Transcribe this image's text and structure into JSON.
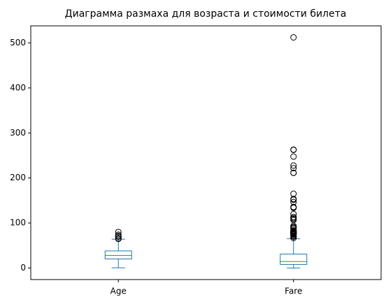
{
  "chart_data": {
    "type": "box",
    "title": "Диаграмма размаха для возраста и стоимости билета",
    "categories": [
      "Age",
      "Fare"
    ],
    "boxes": [
      {
        "whisker_low": 0.42,
        "q1": 20.125,
        "median": 28,
        "q3": 38,
        "whisker_high": 64,
        "outliers": [
          65,
          65,
          66,
          70,
          70,
          70.5,
          71,
          74,
          80
        ]
      },
      {
        "whisker_low": 0,
        "q1": 7.9104,
        "median": 14.4542,
        "q3": 31,
        "whisker_high": 65,
        "outliers": [
          66.6,
          69.55,
          71,
          71.28,
          73.5,
          75.25,
          76.29,
          76.73,
          77.29,
          77.96,
          78.27,
          78.85,
          79.2,
          79.65,
          80,
          81.86,
          82.17,
          83.16,
          83.47,
          86.5,
          89.1,
          90,
          91.08,
          93.5,
          106.43,
          108.9,
          110.88,
          113.28,
          120,
          133.65,
          134.5,
          135.63,
          146.52,
          151.55,
          153.46,
          164.87,
          211.34,
          211.5,
          221.78,
          227.53,
          247.52,
          262.38,
          263,
          512.33
        ]
      }
    ],
    "box_color": "#1f77b4",
    "median_color": "#2ca02c",
    "outlier_color": "#000000",
    "ylim": [
      -25.6,
      537.9
    ],
    "yticks": [
      0,
      100,
      200,
      300,
      400,
      500
    ],
    "grid": false
  }
}
